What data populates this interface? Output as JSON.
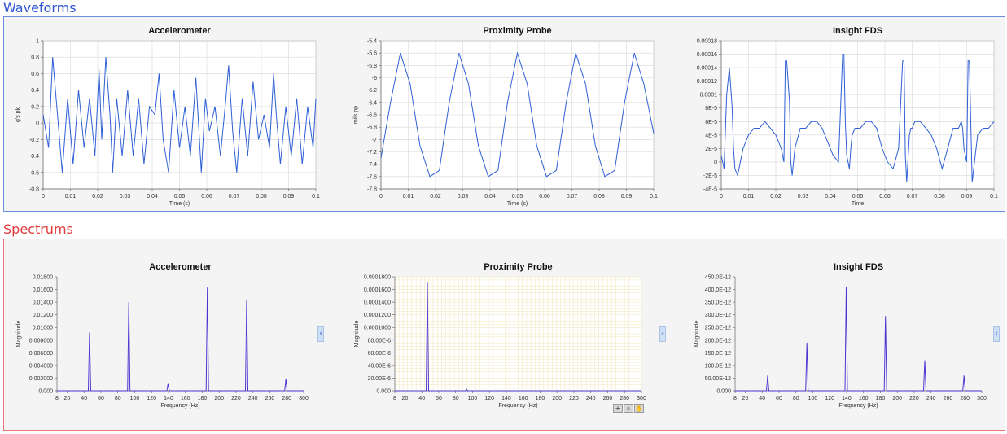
{
  "sections": {
    "waveforms": "Waveforms",
    "spectrums": "Spectrums"
  },
  "colors": {
    "waveform_line": "#2e5fd6",
    "spectrum_line": "#4a34d0",
    "waveforms_border": "#6d8ee0",
    "spectrums_border": "#e87474",
    "plot_grid": "#d8d8d8",
    "prox_spectrum_grid": "#eee6b8"
  },
  "icons": {
    "collapse": "chevron-left-icon",
    "palette": [
      "crosshair-icon",
      "zoom-icon",
      "pan-hand-icon"
    ]
  },
  "chart_data": [
    {
      "id": "wave-accel",
      "type": "line",
      "title": "Accelerometer",
      "xlabel": "Time (s)",
      "ylabel": "g's pk",
      "grid": true,
      "xlim": [
        0,
        0.1
      ],
      "ylim": [
        -0.8,
        1
      ],
      "xticks": [
        "0",
        "0.01",
        "0.02",
        "0.03",
        "0.04",
        "0.05",
        "0.06",
        "0.07",
        "0.08",
        "0.09",
        "0.1"
      ],
      "yticks": [
        "1",
        "0.8",
        "0.6",
        "0.4",
        "0.2",
        "0",
        "-0.2",
        "-0.4",
        "-0.6",
        "-0.8"
      ],
      "x": [
        0,
        0.002,
        0.0035,
        0.005,
        0.007,
        0.009,
        0.011,
        0.013,
        0.015,
        0.017,
        0.019,
        0.0205,
        0.0215,
        0.023,
        0.0245,
        0.0255,
        0.027,
        0.029,
        0.031,
        0.033,
        0.035,
        0.037,
        0.039,
        0.041,
        0.0425,
        0.044,
        0.046,
        0.048,
        0.05,
        0.052,
        0.054,
        0.056,
        0.058,
        0.0595,
        0.061,
        0.063,
        0.065,
        0.067,
        0.068,
        0.0695,
        0.071,
        0.073,
        0.075,
        0.077,
        0.079,
        0.081,
        0.083,
        0.0845,
        0.0855,
        0.087,
        0.089,
        0.091,
        0.093,
        0.095,
        0.097,
        0.099,
        0.1
      ],
      "y": [
        0.1,
        -0.3,
        0.8,
        0.2,
        -0.6,
        0.3,
        -0.5,
        0.4,
        -0.3,
        0.3,
        -0.4,
        0.65,
        -0.2,
        0.8,
        0.1,
        -0.6,
        0.3,
        -0.4,
        0.4,
        -0.4,
        0.3,
        -0.5,
        0.2,
        0.1,
        0.6,
        -0.2,
        -0.6,
        0.4,
        -0.3,
        0.2,
        -0.4,
        0.55,
        -0.6,
        0.3,
        -0.1,
        0.2,
        -0.4,
        0.3,
        0.7,
        -0.1,
        -0.6,
        0.3,
        -0.4,
        0.5,
        -0.2,
        0.1,
        -0.3,
        0.6,
        0.1,
        -0.5,
        0.2,
        -0.4,
        0.3,
        -0.5,
        0.2,
        -0.3,
        0.3
      ]
    },
    {
      "id": "wave-prox",
      "type": "line",
      "title": "Proximity Probe",
      "xlabel": "Time (s)",
      "ylabel": "mils pp",
      "grid": true,
      "xlim": [
        0,
        0.1
      ],
      "ylim": [
        -7.8,
        -5.4
      ],
      "xticks": [
        "0",
        "0.01",
        "0.02",
        "0.03",
        "0.04",
        "0.05",
        "0.06",
        "0.07",
        "0.08",
        "0.09",
        "0.1"
      ],
      "yticks": [
        "-5.4",
        "-5.6",
        "-5.8",
        "-6",
        "-6.2",
        "-6.4",
        "-6.6",
        "-6.8",
        "-7",
        "-7.2",
        "-7.4",
        "-7.6",
        "-7.8"
      ],
      "x": [
        0,
        0.0035,
        0.0071,
        0.0107,
        0.0143,
        0.0179,
        0.0214,
        0.025,
        0.0286,
        0.0321,
        0.0357,
        0.0393,
        0.0429,
        0.0464,
        0.05,
        0.0536,
        0.0571,
        0.0607,
        0.0643,
        0.0679,
        0.0714,
        0.075,
        0.0786,
        0.0821,
        0.0857,
        0.0893,
        0.0929,
        0.0964,
        0.1
      ],
      "y": [
        -7.3,
        -6.4,
        -5.6,
        -6.1,
        -7.1,
        -7.6,
        -7.5,
        -6.4,
        -5.6,
        -6.1,
        -7.1,
        -7.6,
        -7.5,
        -6.4,
        -5.6,
        -6.1,
        -7.1,
        -7.6,
        -7.5,
        -6.4,
        -5.6,
        -6.1,
        -7.1,
        -7.6,
        -7.5,
        -6.4,
        -5.6,
        -6.1,
        -6.9
      ]
    },
    {
      "id": "wave-fds",
      "type": "line",
      "title": "Insight FDS",
      "xlabel": "Time",
      "ylabel": "",
      "grid": true,
      "xlim": [
        0,
        0.1
      ],
      "ylim": [
        -4e-05,
        0.00018
      ],
      "xticks": [
        "0",
        "0.01",
        "0.02",
        "0.03",
        "0.04",
        "0.05",
        "0.06",
        "0.07",
        "0.08",
        "0.09",
        "0.1"
      ],
      "yticks": [
        "0.00018",
        "0.00016",
        "0.00014",
        "0.00012",
        "0.0001",
        "8E-5",
        "6E-5",
        "4E-5",
        "2E-5",
        "0",
        "-2E-5",
        "-4E-5"
      ],
      "x": [
        0,
        0.001,
        0.002,
        0.003,
        0.004,
        0.0045,
        0.005,
        0.006,
        0.008,
        0.01,
        0.012,
        0.014,
        0.016,
        0.018,
        0.02,
        0.022,
        0.023,
        0.0235,
        0.024,
        0.025,
        0.0255,
        0.026,
        0.027,
        0.029,
        0.031,
        0.033,
        0.035,
        0.037,
        0.039,
        0.041,
        0.043,
        0.0445,
        0.045,
        0.0455,
        0.046,
        0.047,
        0.0475,
        0.048,
        0.049,
        0.051,
        0.053,
        0.055,
        0.057,
        0.059,
        0.061,
        0.063,
        0.065,
        0.0665,
        0.067,
        0.0675,
        0.068,
        0.069,
        0.0695,
        0.07,
        0.071,
        0.073,
        0.075,
        0.077,
        0.079,
        0.081,
        0.083,
        0.085,
        0.087,
        0.088,
        0.0885,
        0.089,
        0.09,
        0.0905,
        0.091,
        0.092,
        0.094,
        0.096,
        0.098,
        0.1
      ],
      "y": [
        1e-05,
        -1e-05,
        0.0001,
        0.00014,
        8e-05,
        2e-05,
        -1e-05,
        -2e-05,
        2e-05,
        4e-05,
        5e-05,
        5e-05,
        6e-05,
        5e-05,
        4e-05,
        2e-05,
        0,
        0.00015,
        0.00015,
        9e-05,
        0,
        -2e-05,
        2e-05,
        5e-05,
        5e-05,
        6e-05,
        6e-05,
        5e-05,
        3e-05,
        1e-05,
        0,
        0.00016,
        0.00016,
        6e-05,
        1e-05,
        -1e-05,
        2e-05,
        4e-05,
        5e-05,
        5e-05,
        6e-05,
        6e-05,
        5e-05,
        2e-05,
        0,
        -1e-05,
        2e-05,
        0.00015,
        0.00015,
        1e-05,
        -3e-05,
        4e-05,
        5e-05,
        5e-05,
        6e-05,
        6e-05,
        5e-05,
        4e-05,
        2e-05,
        -1e-05,
        2e-05,
        5e-05,
        5e-05,
        6e-05,
        5e-05,
        2e-05,
        0,
        0.00015,
        0.00015,
        -3e-05,
        4e-05,
        5e-05,
        5e-05,
        6e-05
      ]
    },
    {
      "id": "spec-accel",
      "type": "line",
      "title": "Accelerometer",
      "xlabel": "Frequency (Hz)",
      "ylabel": "Magnitude",
      "grid": false,
      "xlim": [
        8,
        300
      ],
      "ylim": [
        0,
        0.018
      ],
      "xticks": [
        "8",
        "20",
        "40",
        "60",
        "80",
        "100",
        "120",
        "140",
        "160",
        "180",
        "200",
        "220",
        "240",
        "260",
        "280",
        "300"
      ],
      "yticks": [
        "0.01800",
        "0.01600",
        "0.01400",
        "0.01200",
        "0.01000",
        "0.008000",
        "0.006000",
        "0.004000",
        "0.002000",
        "0.000"
      ],
      "peaks": [
        [
          46.5,
          0.0092
        ],
        [
          93,
          0.014
        ],
        [
          139.5,
          0.0012
        ],
        [
          186,
          0.0163
        ],
        [
          232.5,
          0.0143
        ],
        [
          279,
          0.0019
        ]
      ]
    },
    {
      "id": "spec-prox",
      "type": "line",
      "title": "Proximity Probe",
      "xlabel": "Frequency (Hz)",
      "ylabel": "Magnitude",
      "grid": true,
      "xlim": [
        8,
        300
      ],
      "ylim": [
        0,
        0.00018
      ],
      "xticks": [
        "8",
        "20",
        "40",
        "60",
        "80",
        "100",
        "120",
        "140",
        "160",
        "180",
        "200",
        "220",
        "240",
        "260",
        "280",
        "300"
      ],
      "yticks": [
        "0.0001800",
        "0.0001600",
        "0.0001400",
        "0.0001200",
        "0.0001000",
        "80.00E-6",
        "60.00E-6",
        "40.00E-6",
        "20.00E-6",
        "0.000"
      ],
      "peaks": [
        [
          46.5,
          0.000172
        ],
        [
          93,
          2e-06
        ]
      ]
    },
    {
      "id": "spec-fds",
      "type": "line",
      "title": "Insight FDS",
      "xlabel": "Frequency (Hz)",
      "ylabel": "Magnitude",
      "grid": false,
      "xlim": [
        8,
        300
      ],
      "ylim": [
        0,
        4.5e-10
      ],
      "xticks": [
        "8",
        "20",
        "40",
        "60",
        "80",
        "100",
        "120",
        "140",
        "160",
        "180",
        "200",
        "220",
        "240",
        "260",
        "280",
        "300"
      ],
      "yticks": [
        "450.0E-12",
        "400.0E-12",
        "350.0E-12",
        "300.0E-12",
        "250.0E-12",
        "200.0E-12",
        "150.0E-12",
        "100.0E-12",
        "50.00E-12",
        "0.000"
      ],
      "peaks": [
        [
          46.5,
          6e-11
        ],
        [
          93,
          1.9e-10
        ],
        [
          139.5,
          4.1e-10
        ],
        [
          186,
          2.95e-10
        ],
        [
          232.5,
          1.2e-10
        ],
        [
          279,
          6e-11
        ]
      ]
    }
  ]
}
